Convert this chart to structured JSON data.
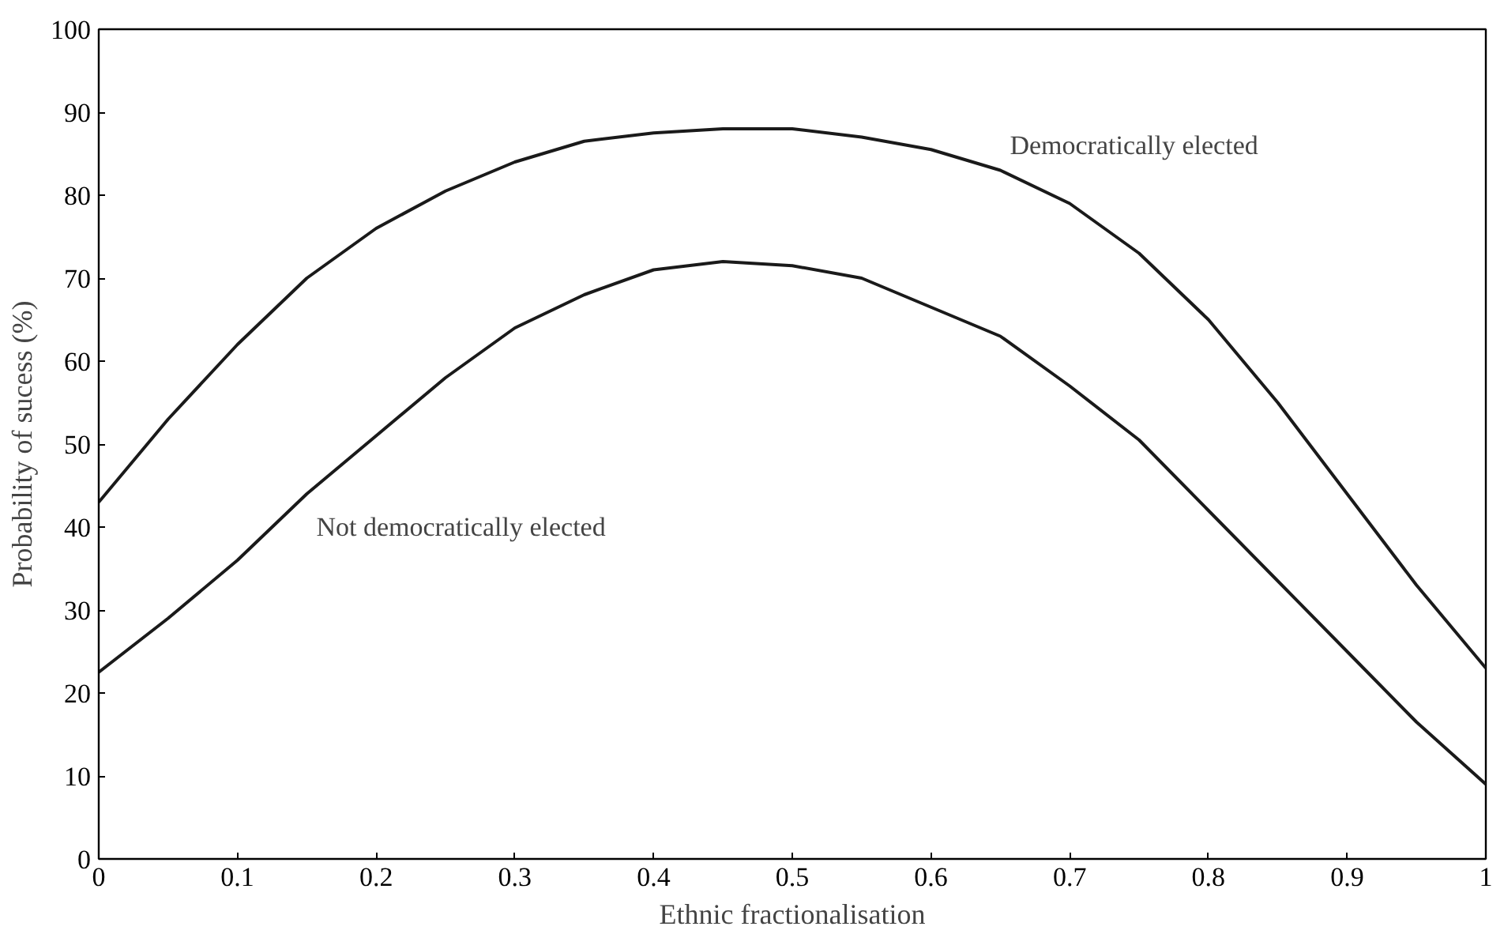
{
  "chart_data": {
    "type": "line",
    "xlabel": "Ethnic fractionalisation",
    "ylabel": "Probability of sucess (%)",
    "x": [
      0,
      0.05,
      0.1,
      0.15,
      0.2,
      0.25,
      0.3,
      0.35,
      0.4,
      0.45,
      0.5,
      0.55,
      0.6,
      0.65,
      0.7,
      0.75,
      0.8,
      0.85,
      0.9,
      0.95,
      1
    ],
    "series": [
      {
        "name": "Democratically elected",
        "color": "#1a1a1a",
        "values": [
          43,
          53,
          62,
          70,
          76,
          80.5,
          84,
          86.5,
          87.5,
          88,
          88,
          87,
          85.5,
          83,
          79,
          73,
          65,
          55,
          44,
          33,
          23
        ]
      },
      {
        "name": "Not democratically elected",
        "color": "#1a1a1a",
        "values": [
          22.5,
          29,
          36,
          44,
          51,
          58,
          64,
          68,
          71,
          72,
          71.5,
          70,
          66.5,
          63,
          57,
          50.5,
          42,
          33.5,
          25,
          16.5,
          9
        ]
      }
    ],
    "xlim": [
      0,
      1
    ],
    "ylim": [
      0,
      100
    ],
    "xticks": [
      0,
      0.1,
      0.2,
      0.3,
      0.4,
      0.5,
      0.6,
      0.7,
      0.8,
      0.9,
      1
    ],
    "yticks": [
      0,
      10,
      20,
      30,
      40,
      50,
      60,
      70,
      80,
      90,
      100
    ],
    "grid": false,
    "marker": "none",
    "line_style": "solid"
  }
}
